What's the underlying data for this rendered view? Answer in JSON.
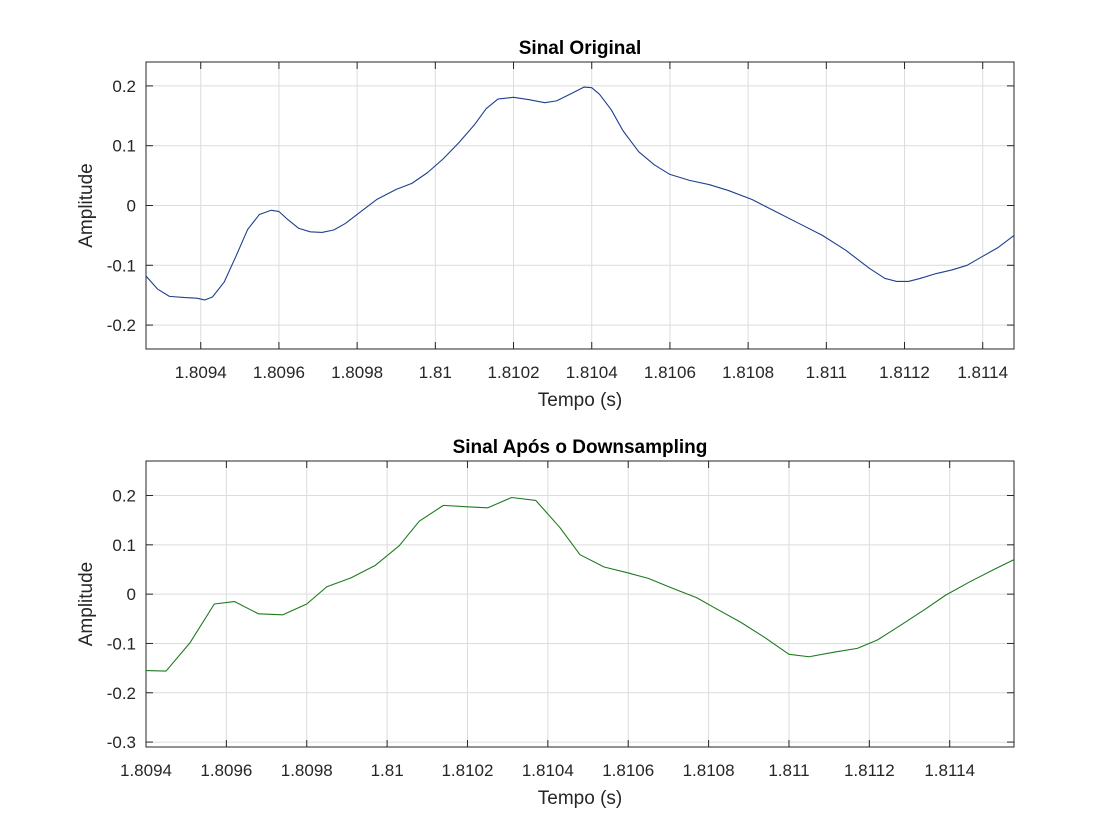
{
  "chart_data": [
    {
      "type": "line",
      "title": "Sinal Original",
      "xlabel": "Tempo (s)",
      "ylabel": "Amplitude",
      "xlim": [
        1.80926,
        1.81148
      ],
      "ylim": [
        -0.24,
        0.24
      ],
      "xticks": [
        1.8094,
        1.8096,
        1.8098,
        1.81,
        1.8102,
        1.8104,
        1.8106,
        1.8108,
        1.811,
        1.8112,
        1.8114
      ],
      "xtick_labels": [
        "1.8094",
        "1.8096",
        "1.8098",
        "1.81",
        "1.8102",
        "1.8104",
        "1.8106",
        "1.8108",
        "1.811",
        "1.8112",
        "1.8114"
      ],
      "yticks": [
        -0.2,
        -0.1,
        0,
        0.1,
        0.2
      ],
      "ytick_labels": [
        "-0.2",
        "-0.1",
        "0",
        "0.1",
        "0.2"
      ],
      "grid": true,
      "series": [
        {
          "name": "Sinal Original",
          "color": "#1f3f8f",
          "x": [
            1.80926,
            1.80929,
            1.80932,
            1.80936,
            1.80939,
            1.80941,
            1.80943,
            1.80946,
            1.80949,
            1.80952,
            1.80955,
            1.80958,
            1.8096,
            1.80962,
            1.80965,
            1.80968,
            1.80971,
            1.80974,
            1.80977,
            1.80981,
            1.80985,
            1.8099,
            1.80994,
            1.80998,
            1.81002,
            1.81006,
            1.8101,
            1.81013,
            1.81016,
            1.8102,
            1.81024,
            1.81028,
            1.81031,
            1.81035,
            1.81038,
            1.8104,
            1.81042,
            1.81045,
            1.81048,
            1.81052,
            1.81056,
            1.8106,
            1.81065,
            1.8107,
            1.81075,
            1.81081,
            1.81087,
            1.81093,
            1.81099,
            1.81105,
            1.81111,
            1.81115,
            1.81118,
            1.81121,
            1.81124,
            1.81128,
            1.81132,
            1.81136,
            1.8114,
            1.81144,
            1.81148
          ],
          "y": [
            -0.118,
            -0.14,
            -0.152,
            -0.154,
            -0.155,
            -0.158,
            -0.153,
            -0.128,
            -0.085,
            -0.04,
            -0.015,
            -0.008,
            -0.01,
            -0.022,
            -0.038,
            -0.044,
            -0.045,
            -0.041,
            -0.03,
            -0.01,
            0.01,
            0.027,
            0.037,
            0.055,
            0.078,
            0.105,
            0.135,
            0.162,
            0.178,
            0.181,
            0.177,
            0.172,
            0.175,
            0.188,
            0.198,
            0.197,
            0.186,
            0.16,
            0.125,
            0.09,
            0.068,
            0.052,
            0.042,
            0.035,
            0.025,
            0.01,
            -0.01,
            -0.03,
            -0.05,
            -0.075,
            -0.105,
            -0.122,
            -0.127,
            -0.127,
            -0.122,
            -0.114,
            -0.108,
            -0.1,
            -0.085,
            -0.07,
            -0.05
          ]
        }
      ]
    },
    {
      "type": "line",
      "title": "Sinal Após o Downsampling",
      "xlabel": "Tempo (s)",
      "ylabel": "Amplitude",
      "xlim": [
        1.8094,
        1.81156
      ],
      "ylim": [
        -0.31,
        0.27
      ],
      "xticks": [
        1.8094,
        1.8096,
        1.8098,
        1.81,
        1.8102,
        1.8104,
        1.8106,
        1.8108,
        1.811,
        1.8112,
        1.8114
      ],
      "xtick_labels": [
        "1.8094",
        "1.8096",
        "1.8098",
        "1.81",
        "1.8102",
        "1.8104",
        "1.8106",
        "1.8108",
        "1.811",
        "1.8112",
        "1.8114"
      ],
      "yticks": [
        -0.3,
        -0.2,
        -0.1,
        0,
        0.1,
        0.2
      ],
      "ytick_labels": [
        "-0.3",
        "-0.2",
        "-0.1",
        "0",
        "0.1",
        "0.2"
      ],
      "grid": true,
      "series": [
        {
          "name": "Sinal Após o Downsampling",
          "color": "#1e7a1e",
          "x": [
            1.8094,
            1.80945,
            1.80951,
            1.80957,
            1.80962,
            1.80968,
            1.80974,
            1.8098,
            1.80985,
            1.80991,
            1.80997,
            1.81003,
            1.81008,
            1.81014,
            1.8102,
            1.81025,
            1.81031,
            1.81037,
            1.81043,
            1.81048,
            1.81054,
            1.8106,
            1.81065,
            1.81071,
            1.81077,
            1.81082,
            1.81088,
            1.81094,
            1.811,
            1.81105,
            1.81111,
            1.81117,
            1.81122,
            1.81128,
            1.81134,
            1.81139,
            1.81145,
            1.81151,
            1.81156
          ],
          "y": [
            -0.155,
            -0.156,
            -0.098,
            -0.02,
            -0.015,
            -0.04,
            -0.042,
            -0.02,
            0.015,
            0.033,
            0.058,
            0.098,
            0.148,
            0.18,
            0.177,
            0.175,
            0.196,
            0.19,
            0.135,
            0.08,
            0.055,
            0.043,
            0.032,
            0.012,
            -0.007,
            -0.03,
            -0.057,
            -0.088,
            -0.122,
            -0.127,
            -0.118,
            -0.11,
            -0.093,
            -0.062,
            -0.03,
            -0.002,
            0.025,
            0.05,
            0.07
          ]
        }
      ]
    }
  ]
}
